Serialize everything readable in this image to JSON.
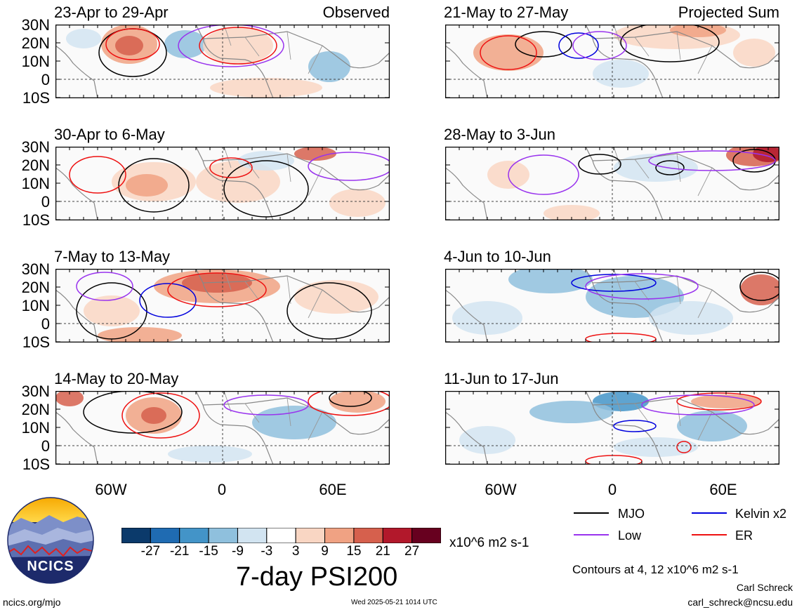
{
  "panels": [
    {
      "title": "23-Apr to 29-Apr",
      "tag": "Observed"
    },
    {
      "title": "21-May to 27-May",
      "tag": "Projected Sum"
    },
    {
      "title": "30-Apr to 6-May",
      "tag": ""
    },
    {
      "title": "28-May to 3-Jun",
      "tag": ""
    },
    {
      "title": "7-May to 13-May",
      "tag": ""
    },
    {
      "title": "4-Jun to 10-Jun",
      "tag": ""
    },
    {
      "title": "14-May to 20-May",
      "tag": ""
    },
    {
      "title": "11-Jun to 17-Jun",
      "tag": ""
    }
  ],
  "lat_labels": [
    "30N",
    "20N",
    "10N",
    "0",
    "10S"
  ],
  "lon_labels": [
    "60W",
    "0",
    "60E"
  ],
  "colorbar": {
    "ticks": [
      "-27",
      "-21",
      "-15",
      "-9",
      "-3",
      "3",
      "9",
      "15",
      "21",
      "27"
    ],
    "colors": [
      "#0b3a6b",
      "#1f6bb2",
      "#4394c8",
      "#8fc0dd",
      "#d2e4f1",
      "#ffffff",
      "#f9d6c3",
      "#f0a283",
      "#d6604d",
      "#b2182b",
      "#67001f"
    ],
    "units": "x10^6 m2 s-1"
  },
  "title": "7-day PSI200",
  "legend": {
    "items": [
      {
        "label": "MJO",
        "color": "#000000"
      },
      {
        "label": "Kelvin x2",
        "color": "#0000dd"
      },
      {
        "label": "Low",
        "color": "#9933ee"
      },
      {
        "label": "ER",
        "color": "#ee1111"
      }
    ],
    "contours_note": "Contours at 4, 12 x10^6 m2 s-1"
  },
  "logo_text": "NCICS",
  "footer": {
    "url": "ncics.org/mjo",
    "timestamp": "Wed 2025-05-21 1014 UTC",
    "author": "Carl Schreck",
    "email": "carl_schreck@ncsu.edu"
  }
}
